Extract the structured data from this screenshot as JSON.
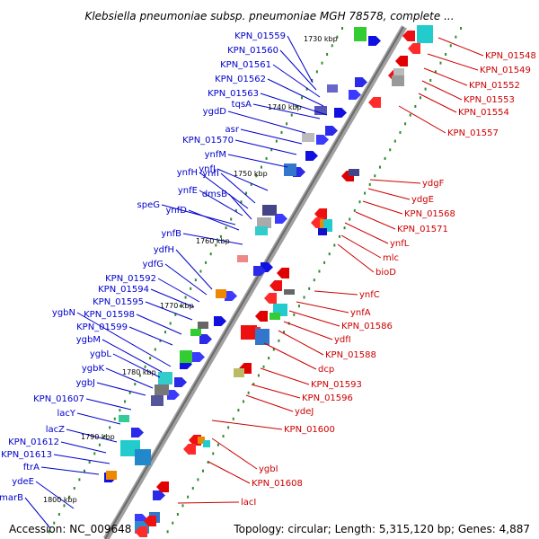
{
  "title": "Klebsiella pneumoniae subsp. pneumoniae MGH 78578, complete ...",
  "footer": {
    "accession": "Accession: NC_009648",
    "topology": "Topology: circular; Length: 5,315,120 bp; Genes: 4,887"
  },
  "colors": {
    "forward_label": "#0000cc",
    "reverse_label": "#cc0000",
    "backbone": "#8a8a8a",
    "tick": "#2e8b2e"
  },
  "kbp_ticks": [
    "1730 kbp",
    "1740 kbp",
    "1750 kbp",
    "1760 kbp",
    "1770 kbp",
    "1780 kbp",
    "1790 kbp",
    "1800 kbp"
  ],
  "left_labels": [
    "KPN_01559",
    "KPN_01560",
    "KPN_01561",
    "KPN_01562",
    "KPN_01563",
    "tqsA",
    "ygdD",
    "asr",
    "KPN_01570",
    "ynfM",
    "ynfJ",
    "ynfH",
    "ynfI",
    "ynfE",
    "dmsB",
    "speG",
    "ynfD",
    "ynfB",
    "ydfH",
    "ydfG",
    "KPN_01592",
    "KPN_01594",
    "KPN_01595",
    "ygbN",
    "KPN_01598",
    "KPN_01599",
    "ygbM",
    "ygbL",
    "ygbK",
    "ygbJ",
    "KPN_01607",
    "lacY",
    "lacZ",
    "KPN_01612",
    "KPN_01613",
    "ftrA",
    "ydeE",
    "marB"
  ],
  "right_labels": [
    "KPN_01548",
    "KPN_01549",
    "KPN_01552",
    "KPN_01553",
    "KPN_01554",
    "KPN_01557",
    "ydgF",
    "ydgE",
    "KPN_01568",
    "KPN_01571",
    "ynfL",
    "mlc",
    "bioD",
    "ynfC",
    "ynfA",
    "KPN_01586",
    "ydfI",
    "KPN_01588",
    "dcp",
    "KPN_01593",
    "KPN_01596",
    "ydeJ",
    "KPN_01600",
    "ygbI",
    "KPN_01608",
    "lacI"
  ]
}
